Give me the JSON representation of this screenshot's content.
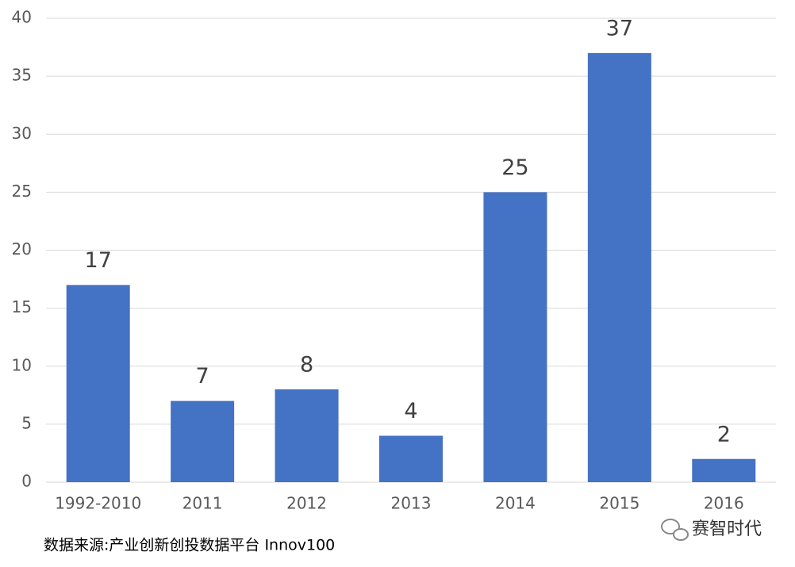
{
  "chart_data": {
    "type": "bar",
    "categories": [
      "1992-2010",
      "2011",
      "2012",
      "2013",
      "2014",
      "2015",
      "2016"
    ],
    "values": [
      17,
      7,
      8,
      4,
      25,
      37,
      2
    ],
    "color": "#4472c4",
    "ylim": [
      0,
      40
    ],
    "yticks": [
      0,
      5,
      10,
      15,
      20,
      25,
      30,
      35,
      40
    ],
    "grid": true,
    "source": "数据来源:产业创新创投数据平台 Innov100",
    "brand": "赛智时代"
  }
}
